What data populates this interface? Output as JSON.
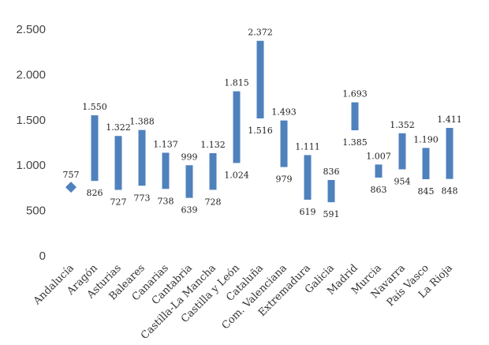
{
  "chart_data": {
    "type": "range-bar",
    "title": "",
    "xlabel": "",
    "ylabel": "",
    "ylim": [
      0,
      2500
    ],
    "y_ticks": [
      0,
      500,
      1000,
      1500,
      2000,
      2500
    ],
    "y_tick_labels": [
      "0",
      "500",
      "1.000",
      "1.500",
      "2.000",
      "2.500"
    ],
    "grid": false,
    "legend": "none",
    "bar_color": "#4f81bd",
    "categories": [
      "Andalucía",
      "Aragón",
      "Asturias",
      "Baleares",
      "Canarias",
      "Cantabria",
      "Castilla-La Mancha",
      "Castilla y León",
      "Cataluña",
      "Com. Valenciana",
      "Extremadura",
      "Galicia",
      "Madrid",
      "Murcia",
      "Navarra",
      "País Vasco",
      "La Rioja"
    ],
    "low": [
      757,
      826,
      727,
      773,
      738,
      639,
      728,
      1024,
      1516,
      979,
      619,
      591,
      1385,
      863,
      954,
      845,
      848
    ],
    "high": [
      757,
      1550,
      1322,
      1388,
      1137,
      999,
      1132,
      1815,
      2372,
      1493,
      1111,
      836,
      1693,
      1007,
      1352,
      1190,
      1411
    ],
    "low_labels": [
      "757",
      "826",
      "727",
      "773",
      "738",
      "639",
      "728",
      "1.024",
      "1.516",
      "979",
      "619",
      "591",
      "1.385",
      "863",
      "954",
      "845",
      "848"
    ],
    "high_labels": [
      "",
      "1.550",
      "1.322",
      "1.388",
      "1.137",
      "999",
      "1.132",
      "1.815",
      "2.372",
      "1.493",
      "1.111",
      "836",
      "1.693",
      "1.007",
      "1.352",
      "1.190",
      "1.411"
    ]
  }
}
